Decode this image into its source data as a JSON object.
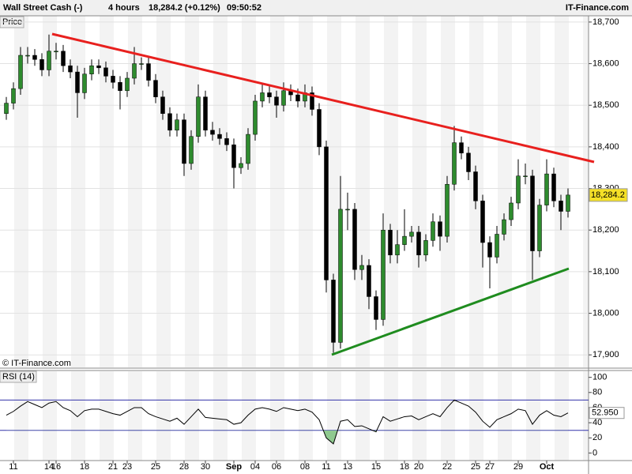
{
  "chart_data": {
    "type": "candlestick",
    "header": {
      "symbol": "Wall Street Cash (-)",
      "interval": "4 hours",
      "quote": "18,284.2 (+0.12%)",
      "time": "09:50:52",
      "brand": "IT-Finance.com"
    },
    "panel_label": "Price",
    "copyright": "© IT-Finance.com",
    "current_label": "18,284.2",
    "up_color": "#2e8b2e",
    "down_color": "#000000",
    "ylim": [
      17870,
      18715
    ],
    "yticks": [
      {
        "value": 17900,
        "label": "17,900"
      },
      {
        "value": 18000,
        "label": "18,000"
      },
      {
        "value": 18100,
        "label": "18,100"
      },
      {
        "value": 18200,
        "label": "18,200"
      },
      {
        "value": 18300,
        "label": "18,300"
      },
      {
        "value": 18400,
        "label": "18,400"
      },
      {
        "value": 18500,
        "label": "18,500"
      },
      {
        "value": 18600,
        "label": "18,600"
      },
      {
        "value": 18700,
        "label": "18,700"
      }
    ],
    "categories": [
      null,
      "11",
      null,
      null,
      null,
      null,
      "14",
      "16",
      null,
      null,
      null,
      "18",
      null,
      null,
      null,
      "21",
      null,
      "23",
      null,
      null,
      null,
      "25",
      null,
      null,
      null,
      "28",
      null,
      null,
      "30",
      null,
      null,
      null,
      "Sep",
      null,
      null,
      "04",
      null,
      null,
      "06",
      null,
      null,
      null,
      "08",
      null,
      null,
      "11",
      null,
      null,
      "13",
      null,
      null,
      null,
      "15",
      null,
      null,
      null,
      "18",
      null,
      "20",
      null,
      null,
      null,
      "22",
      null,
      null,
      null,
      "25",
      null,
      "27",
      null,
      null,
      null,
      "29",
      null,
      null,
      null,
      "Oct",
      null,
      null,
      null
    ],
    "ohlc": [
      [
        18480,
        18520,
        18465,
        18505
      ],
      [
        18505,
        18555,
        18490,
        18540
      ],
      [
        18540,
        18640,
        18525,
        18620
      ],
      [
        18620,
        18640,
        18600,
        18620
      ],
      [
        18620,
        18635,
        18595,
        18610
      ],
      [
        18610,
        18625,
        18570,
        18585
      ],
      [
        18585,
        18670,
        18570,
        18630
      ],
      [
        18630,
        18650,
        18610,
        18630
      ],
      [
        18630,
        18645,
        18580,
        18595
      ],
      [
        18595,
        18610,
        18565,
        18580
      ],
      [
        18580,
        18595,
        18470,
        18530
      ],
      [
        18530,
        18590,
        18515,
        18575
      ],
      [
        18575,
        18610,
        18560,
        18595
      ],
      [
        18595,
        18610,
        18575,
        18590
      ],
      [
        18590,
        18605,
        18555,
        18570
      ],
      [
        18570,
        18585,
        18540,
        18555
      ],
      [
        18555,
        18570,
        18490,
        18535
      ],
      [
        18535,
        18580,
        18520,
        18565
      ],
      [
        18565,
        18640,
        18550,
        18600
      ],
      [
        18600,
        18615,
        18585,
        18600
      ],
      [
        18600,
        18615,
        18545,
        18560
      ],
      [
        18560,
        18575,
        18505,
        18520
      ],
      [
        18520,
        18535,
        18465,
        18480
      ],
      [
        18480,
        18495,
        18425,
        18440
      ],
      [
        18440,
        18480,
        18425,
        18465
      ],
      [
        18465,
        18480,
        18330,
        18360
      ],
      [
        18360,
        18440,
        18345,
        18425
      ],
      [
        18425,
        18550,
        18410,
        18520
      ],
      [
        18520,
        18535,
        18425,
        18440
      ],
      [
        18440,
        18460,
        18415,
        18430
      ],
      [
        18430,
        18445,
        18405,
        18420
      ],
      [
        18420,
        18435,
        18390,
        18405
      ],
      [
        18405,
        18420,
        18300,
        18350
      ],
      [
        18350,
        18375,
        18335,
        18360
      ],
      [
        18360,
        18445,
        18345,
        18430
      ],
      [
        18430,
        18525,
        18415,
        18510
      ],
      [
        18510,
        18550,
        18495,
        18530
      ],
      [
        18530,
        18545,
        18505,
        18520
      ],
      [
        18520,
        18535,
        18470,
        18500
      ],
      [
        18500,
        18555,
        18485,
        18535
      ],
      [
        18535,
        18550,
        18510,
        18525
      ],
      [
        18525,
        18540,
        18495,
        18510
      ],
      [
        18510,
        18550,
        18495,
        18530
      ],
      [
        18530,
        18545,
        18475,
        18490
      ],
      [
        18490,
        18505,
        18380,
        18400
      ],
      [
        18400,
        18415,
        18050,
        18080
      ],
      [
        18080,
        18095,
        17905,
        17930
      ],
      [
        17930,
        18330,
        17915,
        18250
      ],
      [
        18250,
        18290,
        18200,
        18250
      ],
      [
        18250,
        18265,
        18080,
        18105
      ],
      [
        18105,
        18140,
        18080,
        18115
      ],
      [
        18115,
        18130,
        18010,
        18040
      ],
      [
        18040,
        18055,
        17960,
        17985
      ],
      [
        17985,
        18240,
        17970,
        18200
      ],
      [
        18200,
        18215,
        18120,
        18140
      ],
      [
        18140,
        18200,
        18120,
        18165
      ],
      [
        18165,
        18250,
        18150,
        18185
      ],
      [
        18185,
        18210,
        18170,
        18195
      ],
      [
        18195,
        18210,
        18110,
        18140
      ],
      [
        18140,
        18190,
        18125,
        18175
      ],
      [
        18175,
        18240,
        18160,
        18220
      ],
      [
        18220,
        18235,
        18150,
        18185
      ],
      [
        18185,
        18330,
        18170,
        18310
      ],
      [
        18310,
        18450,
        18295,
        18410
      ],
      [
        18410,
        18425,
        18370,
        18385
      ],
      [
        18385,
        18400,
        18320,
        18340
      ],
      [
        18340,
        18355,
        18250,
        18270
      ],
      [
        18270,
        18285,
        18110,
        18170
      ],
      [
        18170,
        18185,
        18060,
        18135
      ],
      [
        18135,
        18210,
        18120,
        18190
      ],
      [
        18190,
        18240,
        18175,
        18225
      ],
      [
        18225,
        18280,
        18210,
        18265
      ],
      [
        18265,
        18370,
        18250,
        18330
      ],
      [
        18330,
        18360,
        18310,
        18330
      ],
      [
        18330,
        18345,
        18080,
        18150
      ],
      [
        18150,
        18275,
        18135,
        18260
      ],
      [
        18260,
        18370,
        18245,
        18335
      ],
      [
        18335,
        18350,
        18255,
        18270
      ],
      [
        18270,
        18285,
        18200,
        18245
      ],
      [
        18245,
        18300,
        18230,
        18284.2
      ]
    ],
    "rsi": {
      "label": "RSI (14)",
      "color": "#000000",
      "level_color": "#3333aa",
      "fill_color": "#8fc98f",
      "current_label": "52.950",
      "ylim": [
        -10,
        108
      ],
      "yticks": [
        0,
        20,
        40,
        60,
        80,
        100
      ],
      "levels": [
        70,
        30
      ],
      "values": [
        50,
        55,
        62,
        68,
        64,
        60,
        66,
        68,
        60,
        56,
        48,
        56,
        58,
        58,
        55,
        52,
        50,
        55,
        60,
        60,
        52,
        48,
        45,
        42,
        46,
        38,
        48,
        58,
        47,
        46,
        45,
        44,
        38,
        40,
        50,
        58,
        60,
        58,
        55,
        60,
        58,
        56,
        58,
        54,
        44,
        20,
        12,
        42,
        44,
        35,
        36,
        32,
        28,
        48,
        42,
        45,
        48,
        49,
        44,
        48,
        52,
        48,
        60,
        70,
        66,
        62,
        54,
        42,
        34,
        44,
        48,
        52,
        58,
        56,
        38,
        50,
        56,
        50,
        48,
        52.95
      ]
    }
  }
}
